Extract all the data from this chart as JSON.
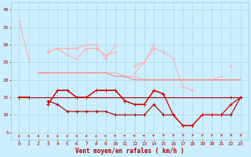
{
  "x": [
    0,
    1,
    2,
    3,
    4,
    5,
    6,
    7,
    8,
    9,
    10,
    11,
    12,
    13,
    14,
    15,
    16,
    17,
    18,
    19,
    20,
    21,
    22,
    23
  ],
  "bg_color": "#cceeff",
  "grid_color": "#aadddd",
  "c_lightpink": "#ffaaaa",
  "c_pink": "#ff7777",
  "c_red": "#dd0000",
  "c_darkred": "#aa0000",
  "ylim": [
    3,
    42
  ],
  "yticks": [
    5,
    10,
    15,
    20,
    25,
    30,
    35,
    40
  ],
  "xlabel": "Vent moyen/en rafales ( km/h )",
  "lines": {
    "pink_top1": [
      37,
      26,
      null,
      28,
      29,
      29,
      29,
      30,
      30,
      26,
      30,
      null,
      24,
      25,
      30,
      null,
      null,
      null,
      null,
      null,
      null,
      null,
      24,
      null
    ],
    "pink_top2": [
      null,
      null,
      null,
      28,
      29,
      27,
      26,
      29,
      29,
      27,
      28,
      null,
      22,
      25,
      29,
      28,
      26,
      18,
      17,
      null,
      20,
      21,
      null,
      null
    ],
    "pink_flat1": [
      null,
      null,
      22,
      22,
      22,
      22,
      22,
      22,
      22,
      22,
      22,
      21,
      21,
      20,
      20,
      20,
      20,
      20,
      20,
      20,
      20,
      20,
      20,
      20
    ],
    "pink_flat2": [
      null,
      null,
      null,
      null,
      null,
      null,
      null,
      null,
      null,
      null,
      null,
      null,
      null,
      null,
      null,
      null,
      null,
      null,
      null,
      null,
      null,
      null,
      null,
      null
    ],
    "salmon_band1": [
      null,
      null,
      22,
      22,
      22,
      22,
      22,
      22,
      22,
      22,
      21,
      21,
      20,
      20,
      20,
      20,
      20,
      20,
      20,
      20,
      20,
      20,
      20,
      20
    ],
    "salmon_band2": [
      null,
      null,
      null,
      null,
      null,
      null,
      null,
      null,
      null,
      null,
      null,
      null,
      null,
      null,
      null,
      null,
      null,
      null,
      null,
      null,
      null,
      null,
      null,
      null
    ],
    "red_upper": [
      15,
      15,
      null,
      13,
      17,
      17,
      15,
      15,
      17,
      17,
      17,
      14,
      13,
      13,
      17,
      16,
      null,
      null,
      null,
      null,
      null,
      null,
      15,
      null
    ],
    "red_flat": [
      15,
      15,
      15,
      15,
      15,
      15,
      15,
      15,
      15,
      15,
      15,
      15,
      15,
      15,
      15,
      15,
      15,
      15,
      15,
      15,
      15,
      15,
      15,
      15
    ],
    "red_lower1": [
      15,
      15,
      null,
      14,
      13,
      11,
      11,
      11,
      11,
      11,
      10,
      10,
      10,
      10,
      13,
      10,
      10,
      7,
      7,
      10,
      10,
      10,
      10,
      15
    ],
    "red_main": [
      15,
      15,
      null,
      13,
      17,
      17,
      15,
      15,
      17,
      17,
      17,
      14,
      13,
      13,
      17,
      16,
      10,
      7,
      7,
      10,
      10,
      10,
      13,
      15
    ]
  },
  "arrow_angles": [
    0,
    0,
    0,
    0,
    0,
    0,
    0,
    0,
    0,
    10,
    15,
    15,
    20,
    20,
    30,
    45,
    60,
    70,
    70,
    60,
    50,
    55,
    55,
    60
  ]
}
